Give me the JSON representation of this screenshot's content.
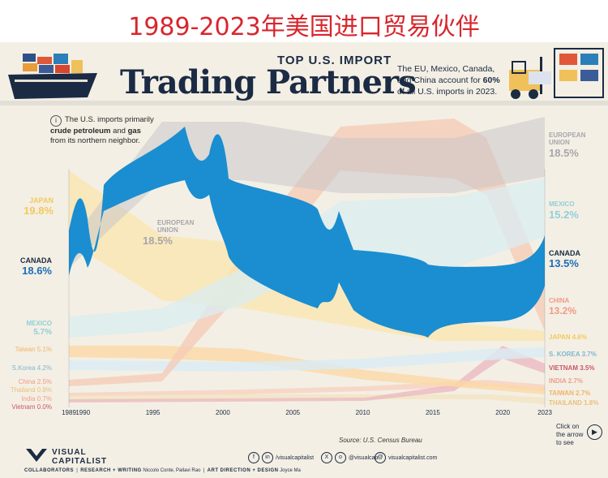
{
  "banner": {
    "title": "1989-2023年美国进口贸易伙伴"
  },
  "header": {
    "kicker": "TOP U.S. IMPORT",
    "title": "Trading Partners",
    "subtitle_pre": "The EU, Mexico, Canada, and China account for ",
    "subtitle_bold": "60%",
    "subtitle_post": " of all U.S. imports in 2023."
  },
  "callout": {
    "icon": "info-icon",
    "pre": "The U.S. imports primarily ",
    "bold1": "crude petroleum",
    "mid": " and ",
    "bold2": "gas",
    "post": " from its northern neighbor."
  },
  "chart_data": {
    "type": "area",
    "subtype": "bump-stream",
    "x_ticks": [
      "1989",
      "1990",
      "1995",
      "2000",
      "2005",
      "2010",
      "2015",
      "2020",
      "2023"
    ],
    "highlight": "Canada",
    "labels_1989": [
      {
        "name": "JAPAN",
        "value": "19.8%"
      },
      {
        "name": "CANADA",
        "value": "18.6%"
      },
      {
        "name": "MEXICO",
        "value": "5.7%"
      },
      {
        "name": "Taiwan",
        "value": "5.1%"
      },
      {
        "name": "S.Korea",
        "value": "4.2%"
      },
      {
        "name": "China",
        "value": "2.5%"
      },
      {
        "name": "Thailand",
        "value": "0.8%"
      },
      {
        "name": "India",
        "value": "0.7%"
      },
      {
        "name": "Vietnam",
        "value": "0.0%"
      }
    ],
    "mid_label": {
      "name": "EUROPEAN UNION",
      "value": "18.5%"
    },
    "labels_2023": [
      {
        "name": "EUROPEAN UNION",
        "value": "18.5%"
      },
      {
        "name": "MEXICO",
        "value": "15.2%"
      },
      {
        "name": "CANADA",
        "value": "13.5%"
      },
      {
        "name": "CHINA",
        "value": "13.2%"
      },
      {
        "name": "JAPAN",
        "value": "4.6%"
      },
      {
        "name": "S. KOREA",
        "value": "3.7%"
      },
      {
        "name": "VIETNAM",
        "value": "3.5%"
      },
      {
        "name": "INDIA",
        "value": "2.7%"
      },
      {
        "name": "TAIWAN",
        "value": "2.7%"
      },
      {
        "name": "THAILAND",
        "value": "1.8%"
      }
    ],
    "colors": {
      "canada": "#1a8ed0",
      "eu": "#c8c6cb",
      "mexico": "#d9eef2",
      "china": "#f6c9b6",
      "japan": "#fbe6ae",
      "taiwan": "#fbd8a6",
      "korea": "#d9ecf5",
      "vietnam": "#e9b3be",
      "india": "#f7d2c0",
      "thailand": "#f3e3c2"
    },
    "label_colors": {
      "japan": "#f2c95a",
      "canada": "#1b6eb6",
      "mexico": "#8fd0d8",
      "taiwan": "#f0b46a",
      "korea": "#7fb6d4",
      "china": "#ef9a86",
      "thailand": "#e8c07d",
      "india": "#ee9e8c",
      "vietnam": "#c9576a",
      "eu": "#a7a5ac"
    }
  },
  "source": "Source: U.S. Census Bureau",
  "click": "Click on the arrow to see",
  "footer": {
    "brand_top": "VISUAL",
    "brand_bottom": "CAPITALIST",
    "social1": "/visualcapitalist",
    "social2": "@visualcap",
    "social3": "visualcapitalist.com",
    "credits_label": "COLLABORATORS",
    "credits_research": "RESEARCH + WRITING",
    "credits_research_names": "Niccolo Conte, Pallavi Rao",
    "credits_art": "ART DIRECTION + DESIGN",
    "credits_art_names": "Joyce Ma"
  }
}
